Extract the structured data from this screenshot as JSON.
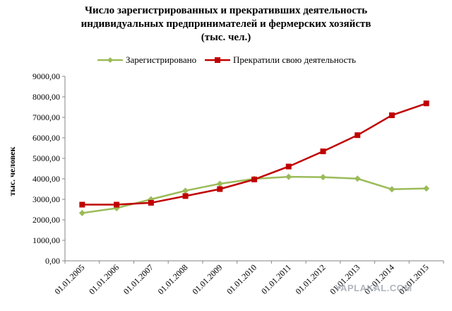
{
  "title_lines": [
    "Число зарегистрированных  и прекративших деятельность",
    "индивидуальных предпринимателей и фермерских хозяйств",
    "(тыс. чел.)"
  ],
  "watermark": "YAPLAKAL.COM",
  "chart_data": {
    "type": "line",
    "title": "Число зарегистрированных  и прекративших деятельность индивидуальных предпринимателей и фермерских хозяйств (тыс. чел.)",
    "xlabel": "",
    "ylabel": "тыс. человек",
    "categories": [
      "01.01.2005",
      "01.01.2006",
      "01.01.2007",
      "01.01.2008",
      "01.01.2009",
      "01.01.2010",
      "01.01.2011",
      "01.01.2012",
      "01.01.2013",
      "01.01.2014",
      "01.01.2015"
    ],
    "y_ticks": [
      "0,00",
      "1000,00",
      "2000,00",
      "3000,00",
      "4000,00",
      "5000,00",
      "6000,00",
      "7000,00",
      "8000,00",
      "9000,00"
    ],
    "ylim": [
      0,
      9000
    ],
    "grid": false,
    "legend_position": "top",
    "series": [
      {
        "name": "Зарегистрировано",
        "color": "#9bbb59",
        "marker": "diamond",
        "values": [
          2330,
          2570,
          3000,
          3420,
          3760,
          4000,
          4100,
          4080,
          4010,
          3490,
          3530
        ]
      },
      {
        "name": "Прекратили свою деятельность",
        "color": "#c00000",
        "marker": "square",
        "values": [
          2740,
          2740,
          2830,
          3160,
          3500,
          3970,
          4600,
          5340,
          6130,
          7100,
          7680
        ]
      }
    ]
  }
}
